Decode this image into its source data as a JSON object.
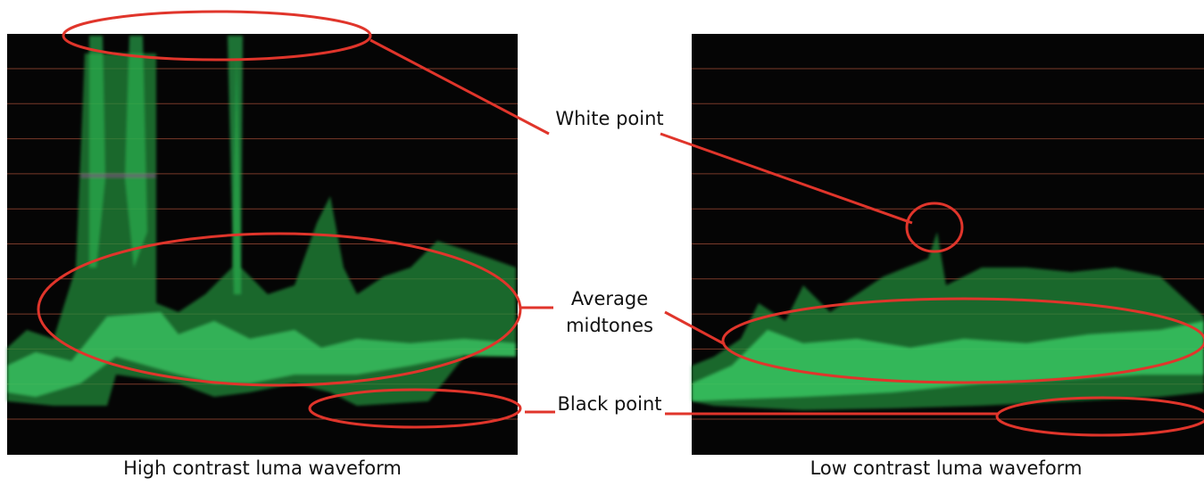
{
  "annotations": [
    {
      "label": "White point"
    },
    {
      "label": "Average midtones"
    },
    {
      "label": "Black point"
    }
  ],
  "captions": [
    "High contrast luma waveform",
    "Low contrast luma waveform"
  ]
}
